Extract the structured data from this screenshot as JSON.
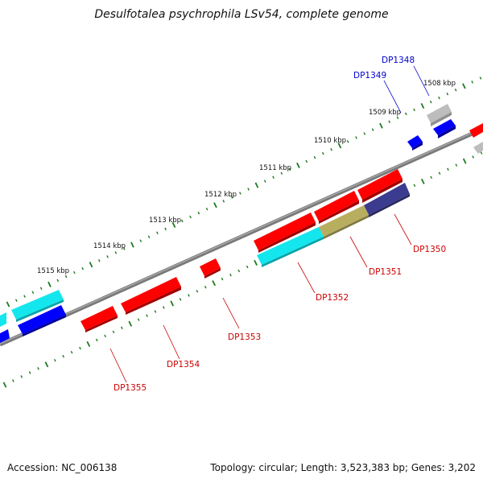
{
  "title": "Desulfotalea psychrophila LSv54, complete genome",
  "accession": "Accession: NC_006138",
  "summary": "Topology: circular; Length: 3,523,383 bp; Genes: 3,202",
  "colors": {
    "backbone": "#7a7a7a",
    "tick": "#1e7a1e",
    "label_red": "#cc0000",
    "label_blue": "#0000cc",
    "red": "#ff0000",
    "blue": "#0000ff",
    "cyan": "#00e0e6",
    "gray": "#bbbbbb",
    "olive": "#b8ae60",
    "slate": "#3b3b8f"
  },
  "kbp_labels": [
    "1508 kbp",
    "1509 kbp",
    "1510 kbp",
    "1511 kbp",
    "1512 kbp",
    "1513 kbp",
    "1514 kbp",
    "1515 kbp"
  ],
  "gene_labels": [
    "DP1348",
    "DP1349",
    "DP1350",
    "DP1351",
    "DP1352",
    "DP1353",
    "DP1354",
    "DP1355"
  ]
}
